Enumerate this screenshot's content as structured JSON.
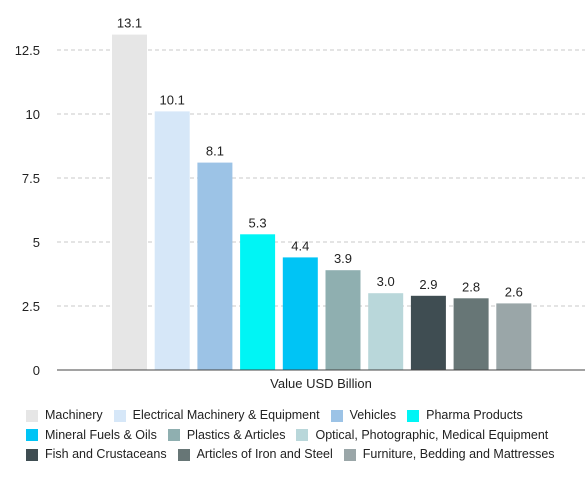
{
  "chart_data": {
    "type": "bar",
    "xlabel": "Value USD Billion",
    "ylabel": "",
    "ylim": [
      0,
      14
    ],
    "yticks": [
      0,
      2.5,
      5,
      7.5,
      10,
      12.5
    ],
    "ytick_labels": [
      "0",
      "2.5",
      "5",
      "7.5",
      "10",
      "12.5"
    ],
    "grid": "horizontal dashed",
    "legend_position": "bottom",
    "categories": [
      "Machinery",
      "Electrical Machinery & Equipment",
      "Vehicles",
      "Pharma Products",
      "Mineral Fuels & Oils",
      "Plastics & Articles",
      "Optical, Photographic, Medical Equipment",
      "Fish and Crustaceans",
      "Articles of Iron and Steel",
      "Furniture, Bedding and Mattresses"
    ],
    "values": [
      13.1,
      10.1,
      8.1,
      5.3,
      4.4,
      3.9,
      3.0,
      2.9,
      2.8,
      2.6
    ],
    "value_labels": [
      "13.1",
      "10.1",
      "8.1",
      "5.3",
      "4.4",
      "3.9",
      "3.0",
      "2.9",
      "2.8",
      "2.6"
    ],
    "colors": [
      "#e6e6e6",
      "#d6e7f8",
      "#9cc3e6",
      "#00f5f5",
      "#00c4f5",
      "#8fafb0",
      "#b9d7da",
      "#3f4d52",
      "#677676",
      "#9aa6a8"
    ]
  },
  "legend": {
    "rows": [
      [
        0,
        1,
        2,
        3
      ],
      [
        4,
        5,
        6
      ],
      [
        7,
        8,
        9
      ]
    ]
  }
}
